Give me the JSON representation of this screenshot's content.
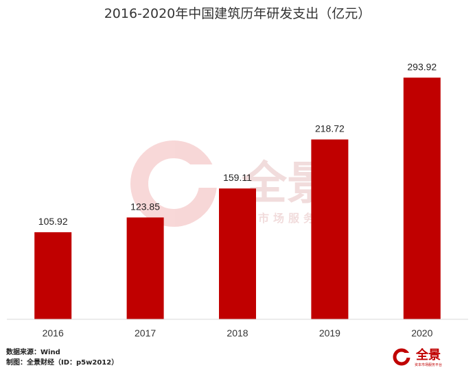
{
  "chart_data": {
    "type": "bar",
    "title": "2016-2020年中国建筑历年研发支出（亿元）",
    "categories": [
      "2016",
      "2017",
      "2018",
      "2019",
      "2020"
    ],
    "values": [
      105.92,
      123.85,
      159.11,
      218.72,
      293.92
    ],
    "value_labels": [
      "105.92",
      "123.85",
      "159.11",
      "218.72",
      "293.92"
    ],
    "ylim": [
      0,
      320
    ],
    "grid": false,
    "legend": "none",
    "bar_color": "#c00000"
  },
  "footer": {
    "source": "数据来源：Wind",
    "maker": "制图：全景财经（ID：p5w2012）"
  },
  "watermark": {
    "brand": "全景",
    "tagline": "资本市场服务平台",
    "color": "#f2b8b8"
  },
  "logo": {
    "brand": "全景",
    "tagline": "资本市场服务平台",
    "color": "#c00000"
  }
}
